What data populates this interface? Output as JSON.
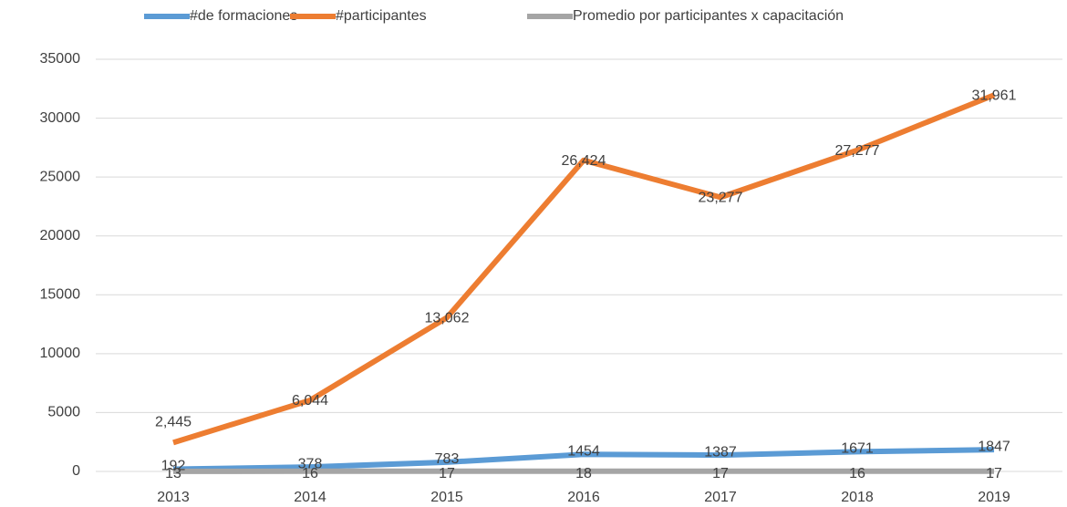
{
  "chart_data": {
    "type": "line",
    "categories": [
      "2013",
      "2014",
      "2015",
      "2016",
      "2017",
      "2018",
      "2019"
    ],
    "series": [
      {
        "name": "#de formaciones",
        "color": "#5b9bd5",
        "values": [
          192,
          378,
          783,
          1454,
          1387,
          1671,
          1847
        ]
      },
      {
        "name": "#participantes",
        "color": "#ed7d31",
        "values": [
          2445,
          6044,
          13062,
          26424,
          23277,
          27277,
          31961
        ],
        "value_labels": [
          "2,445",
          "6,044",
          "13,062",
          "26,424",
          "23,277",
          "27,277",
          "31,961"
        ]
      },
      {
        "name": "Promedio por participantes x capacitación",
        "color": "#a5a5a5",
        "values": [
          13,
          16,
          17,
          18,
          17,
          16,
          17
        ]
      }
    ],
    "ylim": [
      0,
      35000
    ],
    "yticks": [
      0,
      5000,
      10000,
      15000,
      20000,
      25000,
      30000,
      35000
    ],
    "grid": true,
    "legend": "top"
  }
}
